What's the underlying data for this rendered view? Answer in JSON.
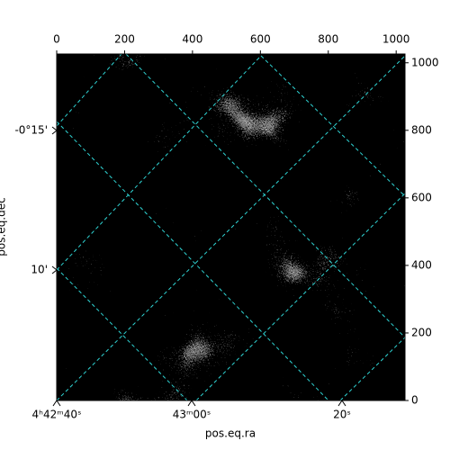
{
  "chart_data": {
    "type": "image",
    "xlabel": "pos.eq.ra",
    "ylabel": "pos.eq.dec",
    "xlim": [
      0,
      1026
    ],
    "ylim": [
      0,
      1026
    ],
    "xticks": [
      0,
      200,
      400,
      600,
      800,
      1000
    ],
    "yticks": [
      0,
      200,
      400,
      600,
      800,
      1000
    ],
    "ra_ticks": [
      "4ʰ42ᵐ40ˢ",
      "43ᵐ00ˢ",
      "20ˢ"
    ],
    "dec_ticks": [
      "-0°15'",
      "10'"
    ],
    "grid_color": "#2fd4d4"
  }
}
